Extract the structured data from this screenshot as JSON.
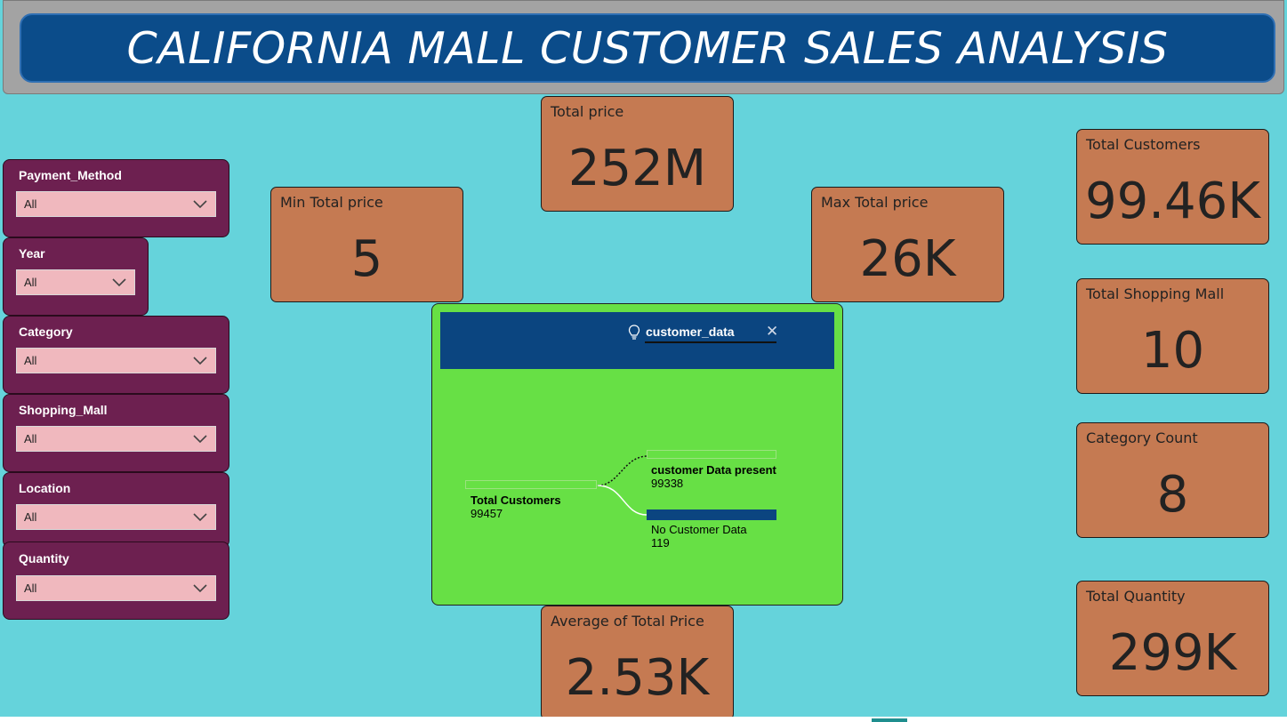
{
  "header": {
    "title": "CALIFORNIA MALL CUSTOMER SALES ANALYSIS"
  },
  "slicers": [
    {
      "label": "Payment_Method",
      "value": "All"
    },
    {
      "label": "Year",
      "value": "All"
    },
    {
      "label": "Category",
      "value": "All"
    },
    {
      "label": "Shopping_Mall",
      "value": "All"
    },
    {
      "label": "Location",
      "value": "All"
    },
    {
      "label": "Quantity",
      "value": "All"
    }
  ],
  "cards": {
    "total_price": {
      "label": "Total price",
      "value": "252M"
    },
    "min_total_price": {
      "label": "Min Total price",
      "value": "5"
    },
    "max_total_price": {
      "label": "Max Total price",
      "value": "26K"
    },
    "avg_total_price": {
      "label": "Average of Total Price",
      "value": "2.53K"
    },
    "total_customers": {
      "label": "Total Customers",
      "value": "99.46K"
    },
    "total_shopping_mall": {
      "label": "Total Shopping Mall",
      "value": "10"
    },
    "category_count": {
      "label": "Category Count",
      "value": "8"
    },
    "total_quantity": {
      "label": "Total Quantity",
      "value": "299K"
    }
  },
  "decomposition_tree": {
    "field": "customer_data",
    "root": {
      "title": "Total Customers",
      "value": "99457"
    },
    "children": [
      {
        "title": "customer Data present",
        "value": "99338"
      },
      {
        "title": "No Customer Data",
        "value": "119"
      }
    ],
    "colors": {
      "header": "#0b4580",
      "bar": "#0b4580",
      "background": "#67e045"
    }
  },
  "colors": {
    "background": "#65d3db",
    "title_bar": "#0b4c8a",
    "slicer": "#6d2050",
    "slicer_box": "#f0b8be",
    "card": "#c57a52"
  }
}
